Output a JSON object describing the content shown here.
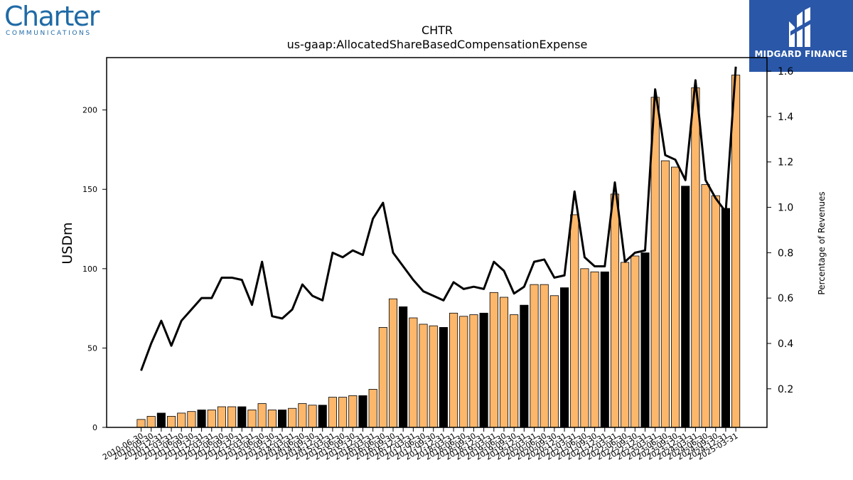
{
  "logos": {
    "left": {
      "word": "Charter",
      "sub": "COMMUNICATIONS"
    },
    "right": {
      "name": "MIDGARD FINANCE"
    }
  },
  "colors": {
    "bar_default": "#fdb76b",
    "bar_highlight": "#000000",
    "line": "#000000"
  },
  "chart_data": {
    "type": "bar",
    "title": "CHTR",
    "subtitle": "us-gaap:AllocatedShareBasedCompensationExpense",
    "ylabel": "USDm",
    "y2label": "Percentage of Revenues",
    "ylim": [
      0,
      233
    ],
    "y2lim": [
      0.03,
      1.66
    ],
    "yticks": [
      0,
      50,
      100,
      150,
      200
    ],
    "y2ticks": [
      0.2,
      0.4,
      0.6,
      0.8,
      1.0,
      1.2,
      1.4,
      1.6
    ],
    "categories": [
      "2010-06-30",
      "2010-09-30",
      "2010-12-31",
      "2011-03-31",
      "2011-06-30",
      "2011-09-30",
      "2011-12-31",
      "2012-03-31",
      "2012-06-30",
      "2012-09-30",
      "2012-12-31",
      "2013-03-31",
      "2013-06-30",
      "2013-09-30",
      "2013-12-31",
      "2014-03-31",
      "2014-06-30",
      "2014-09-30",
      "2014-12-31",
      "2015-03-31",
      "2015-06-30",
      "2015-09-30",
      "2015-12-31",
      "2016-03-31",
      "2016-06-30",
      "2016-09-30",
      "2016-12-31",
      "2017-03-31",
      "2017-06-30",
      "2017-09-30",
      "2017-12-31",
      "2018-03-31",
      "2018-06-30",
      "2018-09-30",
      "2018-12-31",
      "2019-03-31",
      "2019-06-30",
      "2019-09-30",
      "2019-12-31",
      "2020-03-31",
      "2020-06-30",
      "2020-09-30",
      "2020-12-31",
      "2021-03-31",
      "2021-06-30",
      "2021-09-30",
      "2021-12-31",
      "2022-03-31",
      "2022-06-30",
      "2022-09-30",
      "2022-12-31",
      "2023-03-31",
      "2023-06-30",
      "2023-09-30",
      "2023-12-31",
      "2024-03-31",
      "2024-06-30",
      "2024-09-30",
      "2024-12-31",
      "2025-03-31"
    ],
    "series": [
      {
        "kind": "bar",
        "values": [
          5,
          7,
          9,
          7,
          9,
          10,
          11,
          11,
          13,
          13,
          13,
          11,
          15,
          11,
          11,
          12,
          15,
          14,
          14,
          19,
          19,
          20,
          20,
          24,
          63,
          81,
          76,
          69,
          65,
          64,
          63,
          72,
          70,
          71,
          72,
          85,
          82,
          71,
          77,
          90,
          90,
          83,
          88,
          134,
          100,
          98,
          98,
          147,
          104,
          108,
          110,
          208,
          168,
          164,
          152,
          214,
          153,
          146,
          138,
          222
        ],
        "highlight": [
          false,
          false,
          true,
          false,
          false,
          false,
          true,
          false,
          false,
          false,
          true,
          false,
          false,
          false,
          true,
          false,
          false,
          false,
          true,
          false,
          false,
          false,
          true,
          false,
          false,
          false,
          true,
          false,
          false,
          false,
          true,
          false,
          false,
          false,
          true,
          false,
          false,
          false,
          true,
          false,
          false,
          false,
          true,
          false,
          false,
          false,
          true,
          false,
          false,
          false,
          true,
          false,
          false,
          false,
          true,
          false,
          false,
          false,
          true,
          false
        ]
      },
      {
        "kind": "line",
        "axis": "right",
        "values": [
          0.28,
          0.4,
          0.5,
          0.39,
          0.5,
          0.55,
          0.6,
          0.6,
          0.69,
          0.69,
          0.68,
          0.57,
          0.76,
          0.52,
          0.51,
          0.55,
          0.66,
          0.61,
          0.59,
          0.8,
          0.78,
          0.81,
          0.79,
          0.95,
          1.02,
          0.8,
          0.74,
          0.68,
          0.63,
          0.61,
          0.59,
          0.67,
          0.64,
          0.65,
          0.64,
          0.76,
          0.72,
          0.62,
          0.65,
          0.76,
          0.77,
          0.69,
          0.7,
          1.07,
          0.78,
          0.74,
          0.74,
          1.11,
          0.76,
          0.8,
          0.81,
          1.52,
          1.23,
          1.21,
          1.12,
          1.56,
          1.12,
          1.04,
          0.98,
          1.62
        ]
      }
    ]
  }
}
